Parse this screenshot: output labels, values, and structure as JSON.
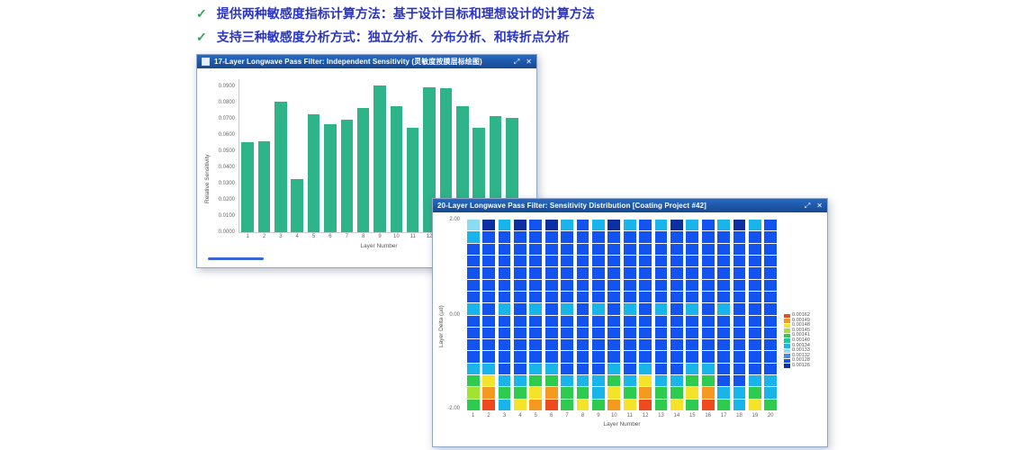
{
  "bullets": [
    {
      "check": "✓",
      "text": "提供两种敏感度指标计算方法：基于设计目标和理想设计的计算方法"
    },
    {
      "check": "✓",
      "text": "支持三种敏感度分析方式：独立分析、分布分析、和转折点分析"
    }
  ],
  "windows": {
    "sensitivity": {
      "title": "17-Layer Longwave Pass Filter: Independent Sensitivity (灵敏度按膜层标绘图)",
      "maximize_icon": "⤢",
      "close_icon": "✕"
    },
    "distribution": {
      "title": "20-Layer Longwave Pass Filter: Sensitivity Distribution [Coating Project #42]",
      "maximize_icon": "⤢",
      "close_icon": "✕"
    }
  },
  "chart_data": [
    {
      "type": "bar",
      "title": "17-Layer Longwave Pass Filter: Independent Sensitivity",
      "categories": [
        "1",
        "2",
        "3",
        "4",
        "5",
        "6",
        "7",
        "8",
        "9",
        "10",
        "11",
        "12",
        "13",
        "14",
        "15",
        "16",
        "17"
      ],
      "values": [
        0.056,
        0.0565,
        0.081,
        0.033,
        0.073,
        0.067,
        0.07,
        0.077,
        0.091,
        0.078,
        0.065,
        0.09,
        0.0895,
        0.078,
        0.065,
        0.072,
        0.071
      ],
      "xlabel": "Layer Number",
      "ylabel": "Relative Sensitivity",
      "ylim": [
        0,
        0.095
      ],
      "yticks": [
        "0.0000",
        "0.0100",
        "0.0200",
        "0.0300",
        "0.0400",
        "0.0500",
        "0.0600",
        "0.0700",
        "0.0800",
        "0.0900"
      ],
      "bar_color": "#2fb389",
      "grid": false,
      "legend_position": "none"
    },
    {
      "type": "heatmap",
      "title": "20-Layer Longwave Pass Filter: Sensitivity Distribution",
      "categories": [
        "1",
        "2",
        "3",
        "4",
        "5",
        "6",
        "7",
        "8",
        "9",
        "10",
        "11",
        "12",
        "13",
        "14",
        "15",
        "16",
        "17",
        "18",
        "19",
        "20"
      ],
      "xlabel": "Layer Number",
      "ylabel": "Layer Delta (µd)",
      "ylim": [
        -2.0,
        2.0
      ],
      "yticks": [
        "2.00",
        "0.00",
        "-2.00"
      ],
      "grid": false,
      "palette": {
        "B": "#1353ef",
        "N": "#0d2fa0",
        "C": "#19b5ea",
        "LC": "#8adcf2",
        "T": "#17c9a3",
        "G": "#2ecc4e",
        "L": "#a2e332",
        "Y": "#f5e32a",
        "O": "#f59a1e",
        "R": "#ed4a1e"
      },
      "columns": [
        [
          "LC",
          "C",
          "B",
          "B",
          "B",
          "B",
          "B",
          "C",
          "B",
          "B",
          "B",
          "B",
          "C",
          "G",
          "L",
          "G"
        ],
        [
          "N",
          "B",
          "B",
          "B",
          "B",
          "B",
          "B",
          "B",
          "B",
          "B",
          "B",
          "B",
          "C",
          "Y",
          "O",
          "R"
        ],
        [
          "C",
          "B",
          "B",
          "B",
          "B",
          "B",
          "B",
          "C",
          "B",
          "B",
          "B",
          "B",
          "B",
          "C",
          "G",
          "C"
        ],
        [
          "N",
          "B",
          "B",
          "B",
          "B",
          "B",
          "B",
          "B",
          "B",
          "B",
          "B",
          "B",
          "B",
          "C",
          "G",
          "Y"
        ],
        [
          "B",
          "B",
          "B",
          "B",
          "B",
          "B",
          "B",
          "C",
          "B",
          "B",
          "B",
          "B",
          "C",
          "G",
          "Y",
          "O"
        ],
        [
          "N",
          "B",
          "B",
          "B",
          "B",
          "B",
          "B",
          "B",
          "B",
          "B",
          "B",
          "B",
          "C",
          "G",
          "O",
          "R"
        ],
        [
          "C",
          "B",
          "B",
          "B",
          "B",
          "B",
          "B",
          "C",
          "B",
          "B",
          "B",
          "B",
          "B",
          "C",
          "G",
          "G"
        ],
        [
          "B",
          "B",
          "B",
          "B",
          "B",
          "B",
          "B",
          "B",
          "B",
          "B",
          "B",
          "B",
          "B",
          "C",
          "G",
          "Y"
        ],
        [
          "C",
          "B",
          "B",
          "B",
          "B",
          "B",
          "B",
          "C",
          "B",
          "B",
          "B",
          "B",
          "B",
          "C",
          "C",
          "G"
        ],
        [
          "N",
          "B",
          "B",
          "B",
          "B",
          "B",
          "B",
          "B",
          "B",
          "B",
          "B",
          "B",
          "C",
          "G",
          "Y",
          "O"
        ],
        [
          "C",
          "B",
          "B",
          "B",
          "B",
          "B",
          "B",
          "C",
          "B",
          "B",
          "B",
          "B",
          "B",
          "C",
          "G",
          "Y"
        ],
        [
          "B",
          "B",
          "B",
          "B",
          "B",
          "B",
          "B",
          "B",
          "B",
          "B",
          "B",
          "B",
          "C",
          "Y",
          "O",
          "R"
        ],
        [
          "C",
          "B",
          "B",
          "B",
          "B",
          "B",
          "B",
          "C",
          "B",
          "B",
          "B",
          "B",
          "B",
          "C",
          "G",
          "G"
        ],
        [
          "N",
          "B",
          "B",
          "B",
          "B",
          "B",
          "B",
          "B",
          "B",
          "B",
          "B",
          "B",
          "B",
          "C",
          "G",
          "Y"
        ],
        [
          "C",
          "B",
          "B",
          "B",
          "B",
          "B",
          "B",
          "C",
          "B",
          "B",
          "B",
          "B",
          "C",
          "G",
          "Y",
          "G"
        ],
        [
          "B",
          "B",
          "B",
          "B",
          "B",
          "B",
          "B",
          "B",
          "B",
          "B",
          "B",
          "B",
          "C",
          "G",
          "O",
          "R"
        ],
        [
          "C",
          "B",
          "B",
          "B",
          "B",
          "B",
          "B",
          "C",
          "B",
          "B",
          "B",
          "B",
          "B",
          "B",
          "C",
          "G"
        ],
        [
          "N",
          "B",
          "B",
          "B",
          "B",
          "B",
          "B",
          "B",
          "B",
          "B",
          "B",
          "B",
          "B",
          "B",
          "C",
          "C"
        ],
        [
          "C",
          "B",
          "B",
          "B",
          "B",
          "B",
          "B",
          "B",
          "B",
          "B",
          "B",
          "B",
          "B",
          "C",
          "G",
          "Y"
        ],
        [
          "B",
          "B",
          "B",
          "B",
          "B",
          "B",
          "B",
          "B",
          "B",
          "B",
          "B",
          "B",
          "B",
          "C",
          "C",
          "G"
        ]
      ],
      "legend": {
        "position": "right",
        "entries": [
          {
            "color": "#ed4a1e",
            "label": "0.00162"
          },
          {
            "color": "#f59a1e",
            "label": "0.00149"
          },
          {
            "color": "#f5e32a",
            "label": "0.00148"
          },
          {
            "color": "#a2e332",
            "label": "0.00145"
          },
          {
            "color": "#2ecc4e",
            "label": "0.00141"
          },
          {
            "color": "#17c9a3",
            "label": "0.00140"
          },
          {
            "color": "#19b5ea",
            "label": "0.00134"
          },
          {
            "color": "#8adcf2",
            "label": "0.00133"
          },
          {
            "color": "#4a86f0",
            "label": "0.00132"
          },
          {
            "color": "#1353ef",
            "label": "0.00128"
          },
          {
            "color": "#0d2fa0",
            "label": "0.00126"
          }
        ]
      }
    }
  ]
}
